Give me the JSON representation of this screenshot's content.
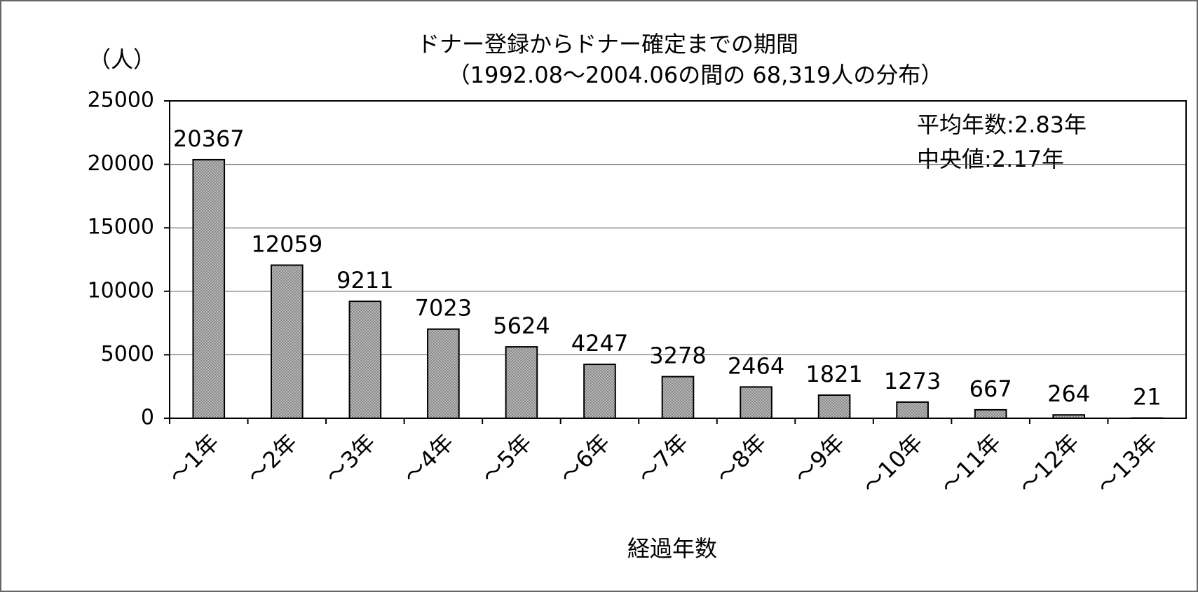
{
  "chart_data": {
    "type": "bar",
    "title": "ドナー登録からドナー確定までの期間",
    "subtitle": "（1992.08～2004.06の間の 68,319人の分布）",
    "y_axis_label": "（人）",
    "x_axis_label": "経過年数",
    "annotations": [
      "平均年数:2.83年",
      "中央値:2.17年"
    ],
    "categories": [
      "～1年",
      "～2年",
      "～3年",
      "～4年",
      "～5年",
      "～6年",
      "～7年",
      "～8年",
      "～9年",
      "～10年",
      "～11年",
      "～12年",
      "～13年"
    ],
    "values": [
      20367,
      12059,
      9211,
      7023,
      5624,
      4247,
      3278,
      2464,
      1821,
      1273,
      667,
      264,
      21
    ],
    "color": "#a8a8a8",
    "ylim": [
      0,
      25000
    ],
    "yticks": [
      0,
      5000,
      10000,
      15000,
      20000,
      25000
    ],
    "grid": true
  }
}
